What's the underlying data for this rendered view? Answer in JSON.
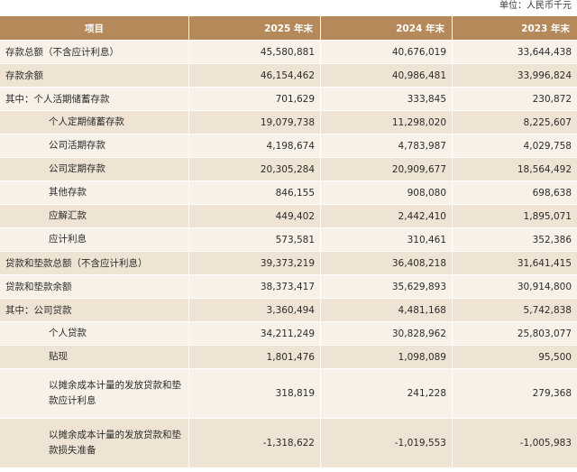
{
  "unit_label": "单位：人民币千元",
  "headers": [
    "项目",
    "2025 年末",
    "2024 年末",
    "2023 年末"
  ],
  "rows": [
    {
      "label": "存款总额（不含应计利息）",
      "v2025": "45,580,881",
      "v2024": "40,676,019",
      "v2023": "33,644,438"
    },
    {
      "label": "存款余额",
      "v2025": "46,154,462",
      "v2024": "40,986,481",
      "v2023": "33,996,824"
    },
    {
      "label": "其中：个人活期储蓄存款",
      "v2025": "701,629",
      "v2024": "333,845",
      "v2023": "230,872"
    },
    {
      "label": "个人定期储蓄存款",
      "v2025": "19,079,738",
      "v2024": "11,298,020",
      "v2023": "8,225,607"
    },
    {
      "label": "公司活期存款",
      "v2025": "4,198,674",
      "v2024": "4,783,987",
      "v2023": "4,029,758"
    },
    {
      "label": "公司定期存款",
      "v2025": "20,305,284",
      "v2024": "20,909,677",
      "v2023": "18,564,492"
    },
    {
      "label": "其他存款",
      "v2025": "846,155",
      "v2024": "908,080",
      "v2023": "698,638"
    },
    {
      "label": "应解汇款",
      "v2025": "449,402",
      "v2024": "2,442,410",
      "v2023": "1,895,071"
    },
    {
      "label": "应计利息",
      "v2025": "573,581",
      "v2024": "310,461",
      "v2023": "352,386"
    },
    {
      "label": "贷款和垫款总额（不含应计利息）",
      "v2025": "39,373,219",
      "v2024": "36,408,218",
      "v2023": "31,641,415"
    },
    {
      "label": "贷款和垫款余额",
      "v2025": "38,373,417",
      "v2024": "35,629,893",
      "v2023": "30,914,800"
    },
    {
      "label": "其中：公司贷款",
      "v2025": "3,360,494",
      "v2024": "4,481,168",
      "v2023": "5,742,838"
    },
    {
      "label": "个人贷款",
      "v2025": "34,211,249",
      "v2024": "30,828,962",
      "v2023": "25,803,077"
    },
    {
      "label": "贴现",
      "v2025": "1,801,476",
      "v2024": "1,098,089",
      "v2023": "95,500"
    },
    {
      "label": "以摊余成本计量的发放贷款和垫款应计利息",
      "v2025": "318,819",
      "v2024": "241,228",
      "v2023": "279,368"
    },
    {
      "label": "以摊余成本计量的发放贷款和垫款损失准备",
      "v2025": "-1,318,622",
      "v2024": "-1,019,553",
      "v2023": "-1,005,983"
    }
  ]
}
